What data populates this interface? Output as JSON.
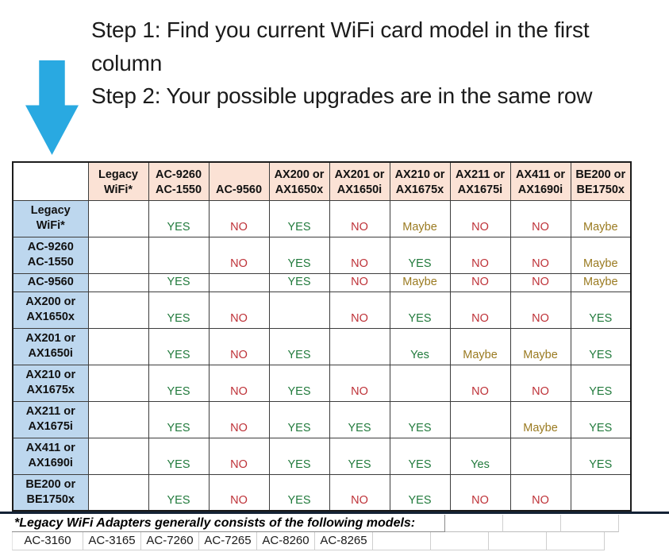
{
  "instructions": {
    "step1": "Step 1: Find you current WiFi card model in the first column",
    "step2": "Step 2: Your possible upgrades are in the same row"
  },
  "chart_data": {
    "type": "table",
    "columns": [
      "Legacy WiFi*",
      "AC-9260 AC-1550",
      "AC-9560",
      "AX200 or AX1650x",
      "AX201 or AX1650i",
      "AX210 or AX1675x",
      "AX211 or AX1675i",
      "AX411 or AX1690i",
      "BE200 or BE1750x"
    ],
    "rows": [
      {
        "label": "Legacy WiFi*",
        "values": [
          "B",
          "YES",
          "NO",
          "YES",
          "NO",
          "Maybe",
          "NO",
          "NO",
          "Maybe"
        ]
      },
      {
        "label": "AC-9260 AC-1550",
        "values": [
          "B",
          "B",
          "NO",
          "YES",
          "NO",
          "YES",
          "NO",
          "NO",
          "Maybe"
        ]
      },
      {
        "label": "AC-9560",
        "values": [
          "B",
          "YES",
          "B",
          "YES",
          "NO",
          "Maybe",
          "NO",
          "NO",
          "Maybe"
        ]
      },
      {
        "label": "AX200 or AX1650x",
        "values": [
          "B",
          "YES",
          "NO",
          "B",
          "NO",
          "YES",
          "NO",
          "NO",
          "YES"
        ]
      },
      {
        "label": "AX201 or AX1650i",
        "values": [
          "B",
          "YES",
          "NO",
          "YES",
          "B",
          "Yes",
          "Maybe",
          "Maybe",
          "YES"
        ]
      },
      {
        "label": "AX210 or AX1675x",
        "values": [
          "B",
          "YES",
          "NO",
          "YES",
          "NO",
          "B",
          "NO",
          "NO",
          "YES"
        ]
      },
      {
        "label": "AX211 or AX1675i",
        "values": [
          "B",
          "YES",
          "NO",
          "YES",
          "YES",
          "YES",
          "B",
          "Maybe",
          "YES"
        ]
      },
      {
        "label": "AX411 or AX1690i",
        "values": [
          "B",
          "YES",
          "NO",
          "YES",
          "YES",
          "YES",
          "Yes",
          "B",
          "YES"
        ]
      },
      {
        "label": "BE200 or BE1750x",
        "values": [
          "B",
          "YES",
          "NO",
          "YES",
          "NO",
          "YES",
          "NO",
          "NO",
          "B"
        ]
      }
    ],
    "legend": {
      "B": "black cell"
    }
  },
  "footnote": {
    "text": "*Legacy WiFi Adapters generally consists of the following models:",
    "models": [
      "AC-3160",
      "AC-3165",
      "AC-7260",
      "AC-7265",
      "AC-8260",
      "AC-8265"
    ]
  },
  "colors": {
    "yes_bg": "#CBEAD3",
    "yes_text": "#217A3C",
    "no_bg": "#F8C8CE",
    "no_text": "#BE3238",
    "maybe_bg": "#FAE38D",
    "maybe_text": "#9A7A20",
    "header_bg": "#FBE2D5",
    "row_header_bg": "#BDD7EE",
    "black_cell": "#000000",
    "arrow": "#29A9E1",
    "divider": "#142235"
  }
}
